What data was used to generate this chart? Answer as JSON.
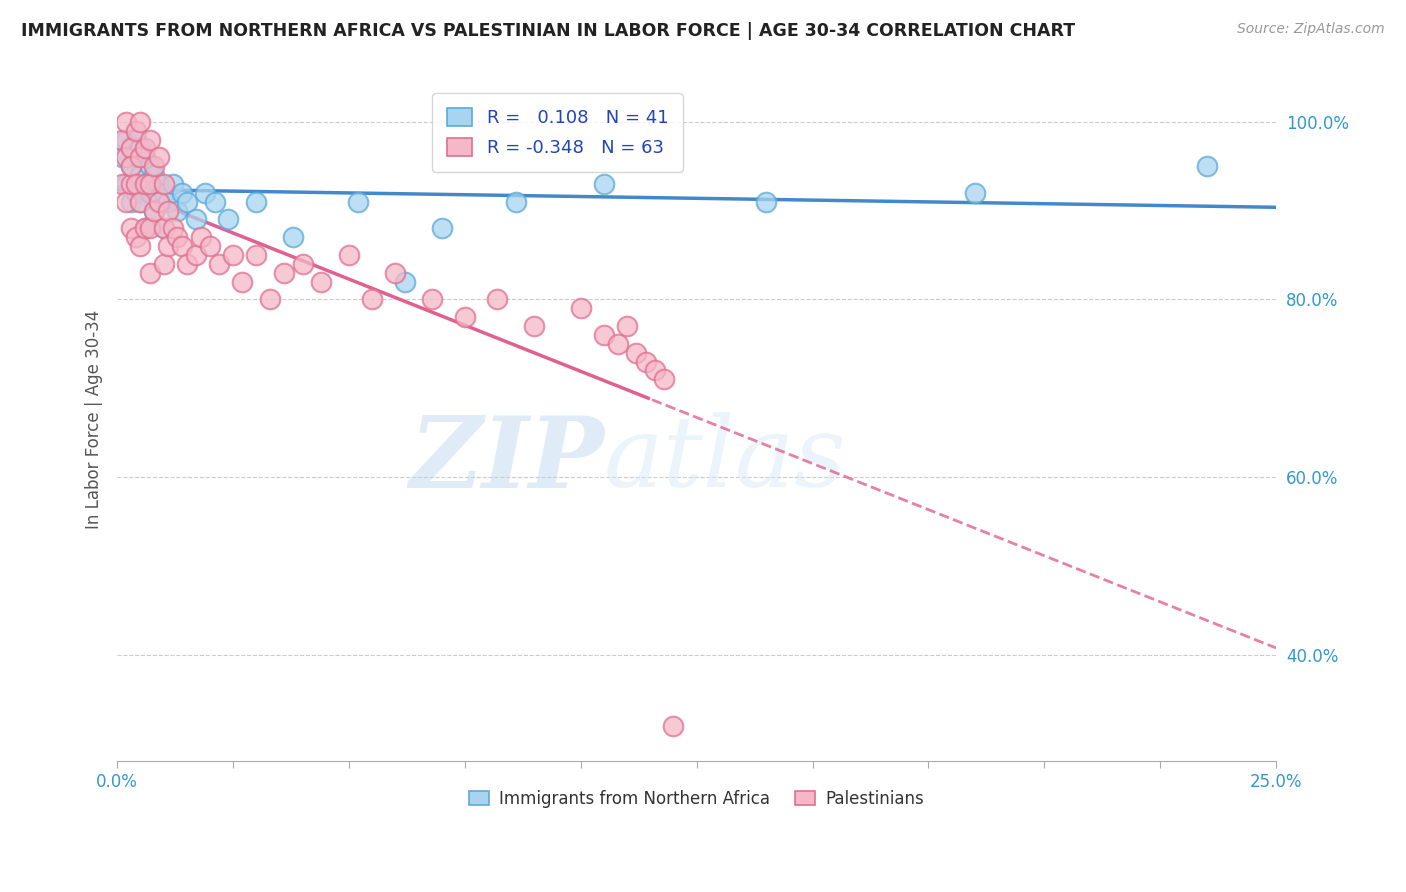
{
  "title": "IMMIGRANTS FROM NORTHERN AFRICA VS PALESTINIAN IN LABOR FORCE | AGE 30-34 CORRELATION CHART",
  "source": "Source: ZipAtlas.com",
  "ylabel": "In Labor Force | Age 30-34",
  "xlim": [
    0.0,
    0.25
  ],
  "ylim": [
    0.28,
    1.05
  ],
  "xticks": [
    0.0,
    0.025,
    0.05,
    0.075,
    0.1,
    0.125,
    0.15,
    0.175,
    0.2,
    0.225,
    0.25
  ],
  "xtick_labels_show": {
    "0.0": "0.0%",
    "0.25": "25.0%"
  },
  "yticks": [
    0.4,
    0.6,
    0.8,
    1.0
  ],
  "ytick_labels": [
    "40.0%",
    "60.0%",
    "80.0%",
    "100.0%"
  ],
  "blue_fill": "#a8d4f0",
  "blue_edge": "#5baad8",
  "pink_fill": "#f5b8c8",
  "pink_edge": "#e07090",
  "blue_line_color": "#4488cc",
  "pink_line_color": "#e06090",
  "legend_R_blue": "0.108",
  "legend_N_blue": "41",
  "legend_R_pink": "-0.348",
  "legend_N_pink": "63",
  "watermark_zip": "ZIP",
  "watermark_atlas": "atlas",
  "watermark_color": "#c8dff0",
  "blue_scatter_x": [
    0.001,
    0.002,
    0.002,
    0.003,
    0.003,
    0.003,
    0.004,
    0.004,
    0.004,
    0.005,
    0.005,
    0.005,
    0.006,
    0.006,
    0.006,
    0.007,
    0.007,
    0.008,
    0.008,
    0.009,
    0.01,
    0.01,
    0.011,
    0.012,
    0.013,
    0.014,
    0.015,
    0.017,
    0.019,
    0.021,
    0.024,
    0.03,
    0.038,
    0.052,
    0.062,
    0.07,
    0.086,
    0.105,
    0.14,
    0.185,
    0.235
  ],
  "blue_scatter_y": [
    0.96,
    0.98,
    0.93,
    0.97,
    0.91,
    0.95,
    0.96,
    0.92,
    0.98,
    0.94,
    0.91,
    0.97,
    0.93,
    0.88,
    0.96,
    0.92,
    0.95,
    0.94,
    0.9,
    0.93,
    0.92,
    0.88,
    0.91,
    0.93,
    0.9,
    0.92,
    0.91,
    0.89,
    0.92,
    0.91,
    0.89,
    0.91,
    0.87,
    0.91,
    0.82,
    0.88,
    0.91,
    0.93,
    0.91,
    0.92,
    0.95
  ],
  "pink_scatter_x": [
    0.001,
    0.001,
    0.002,
    0.002,
    0.002,
    0.003,
    0.003,
    0.003,
    0.003,
    0.004,
    0.004,
    0.004,
    0.005,
    0.005,
    0.005,
    0.005,
    0.006,
    0.006,
    0.006,
    0.007,
    0.007,
    0.007,
    0.007,
    0.008,
    0.008,
    0.009,
    0.009,
    0.01,
    0.01,
    0.01,
    0.011,
    0.011,
    0.012,
    0.013,
    0.014,
    0.015,
    0.017,
    0.018,
    0.02,
    0.022,
    0.025,
    0.027,
    0.03,
    0.033,
    0.036,
    0.04,
    0.044,
    0.05,
    0.055,
    0.06,
    0.068,
    0.075,
    0.082,
    0.09,
    0.1,
    0.105,
    0.108,
    0.11,
    0.112,
    0.114,
    0.116,
    0.118,
    0.12
  ],
  "pink_scatter_y": [
    0.98,
    0.93,
    1.0,
    0.96,
    0.91,
    0.97,
    0.93,
    0.88,
    0.95,
    0.99,
    0.93,
    0.87,
    1.0,
    0.96,
    0.91,
    0.86,
    0.97,
    0.93,
    0.88,
    0.98,
    0.93,
    0.88,
    0.83,
    0.95,
    0.9,
    0.96,
    0.91,
    0.93,
    0.88,
    0.84,
    0.9,
    0.86,
    0.88,
    0.87,
    0.86,
    0.84,
    0.85,
    0.87,
    0.86,
    0.84,
    0.85,
    0.82,
    0.85,
    0.8,
    0.83,
    0.84,
    0.82,
    0.85,
    0.8,
    0.83,
    0.8,
    0.78,
    0.8,
    0.77,
    0.79,
    0.76,
    0.75,
    0.77,
    0.74,
    0.73,
    0.72,
    0.71,
    0.32
  ]
}
